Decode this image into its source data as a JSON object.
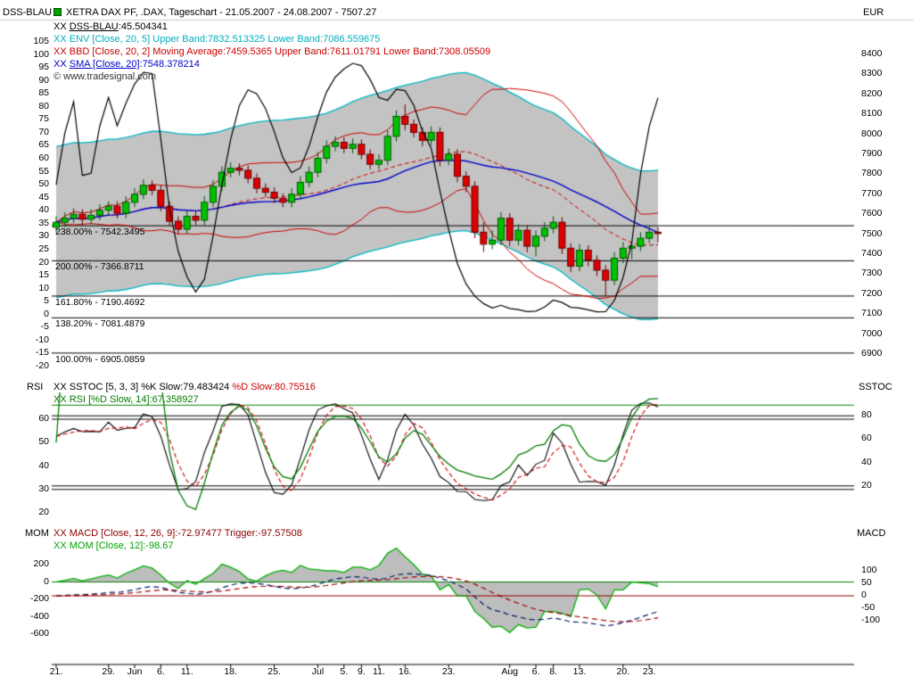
{
  "header": {
    "left_axis_title": "DSS-BLAU",
    "title": "XETRA DAX PF, .DAX, Tageschart - 21.05.2007 - 24.08.2007 - 7507.27",
    "right_axis_title": "EUR"
  },
  "panels": {
    "main": {
      "left_title": "DSS-BLAU",
      "right_title": "EUR"
    },
    "rsi": {
      "left_title": "RSI",
      "right_title": "SSTOC"
    },
    "mom": {
      "left_title": "MOM",
      "right_title": "MACD"
    }
  },
  "legends": {
    "main": [
      [
        {
          "t": "XX ",
          "c": "#000000"
        },
        {
          "t": "DSS-BLAU",
          "c": "#000000",
          "u": true
        },
        {
          "t": ":45.504341",
          "c": "#000000"
        }
      ],
      [
        {
          "t": "XX ",
          "c": "#00aebf"
        },
        {
          "t": "ENV [Close, 20, 5] Upper Band:7832.513325 Lower Band:7086.559675",
          "c": "#00aebf"
        }
      ],
      [
        {
          "t": "XX ",
          "c": "#cc0000"
        },
        {
          "t": "BBD [Close, 20, 2] Moving Average:7459.5365 Upper Band:7611.01791 Lower Band:7308.05509",
          "c": "#cc0000"
        }
      ],
      [
        {
          "t": "XX ",
          "c": "#0000cc"
        },
        {
          "t": "SMA [Close, 20]",
          "c": "#0000cc",
          "u": true
        },
        {
          "t": ":7548.378214",
          "c": "#0000cc"
        }
      ],
      [
        {
          "t": "© www.tradesignal.com",
          "c": "#333333"
        }
      ]
    ],
    "rsi": [
      [
        {
          "t": "XX ",
          "c": "#000000"
        },
        {
          "t": "SSTOC [5, 3, 3] %K Slow:79.483424 ",
          "c": "#000000"
        },
        {
          "t": "%D Slow:80.75516",
          "c": "#cc0000"
        }
      ],
      [
        {
          "t": "XX ",
          "c": "#007b00"
        },
        {
          "t": "RSI [%D Slow, 14]:67.358927",
          "c": "#007b00"
        }
      ]
    ],
    "mom": [
      [
        {
          "t": "XX ",
          "c": "#8b0000"
        },
        {
          "t": "MACD [Close, 12, 26, 9]:-72.97477 Trigger:-97.57508",
          "c": "#8b0000"
        }
      ],
      [
        {
          "t": "XX ",
          "c": "#00a000"
        },
        {
          "t": "MOM [Close, 12]:-98.67",
          "c": "#00a000"
        }
      ]
    ]
  },
  "fib_levels": [
    {
      "label": "238.00% - 7542.3495",
      "value": 7542.3495
    },
    {
      "label": "200.00% - 7366.8711",
      "value": 7366.8711
    },
    {
      "label": "161.80% - 7190.4692",
      "value": 7190.4692
    },
    {
      "label": "138.20% - 7081.4879",
      "value": 7081.4879
    },
    {
      "label": "100.00% - 6905.0859",
      "value": 6905.0859
    }
  ],
  "axes": {
    "main_left": [
      105,
      100,
      95,
      90,
      85,
      80,
      75,
      70,
      65,
      60,
      55,
      50,
      45,
      40,
      35,
      30,
      25,
      20,
      15,
      10,
      5,
      0,
      -5,
      -10,
      -15,
      -20
    ],
    "main_right": [
      8400,
      8300,
      8200,
      8100,
      8000,
      7900,
      7800,
      7700,
      7600,
      7500,
      7400,
      7300,
      7200,
      7100,
      7000,
      6900
    ],
    "rsi_left": [
      60,
      50,
      40,
      30,
      20
    ],
    "rsi_right": [
      80,
      60,
      40,
      20
    ],
    "mom_left": [
      200,
      0,
      -200,
      -400,
      -600
    ],
    "mom_right": [
      100,
      50,
      0,
      -50,
      -100
    ],
    "x_ticks": [
      {
        "label": "21.",
        "i": 0
      },
      {
        "label": "29.",
        "i": 6
      },
      {
        "label": "Jun",
        "i": 9
      },
      {
        "label": "6.",
        "i": 12
      },
      {
        "label": "11.",
        "i": 15
      },
      {
        "label": "18.",
        "i": 20
      },
      {
        "label": "25.",
        "i": 25
      },
      {
        "label": "Jul",
        "i": 30
      },
      {
        "label": "5.",
        "i": 33
      },
      {
        "label": "9.",
        "i": 35
      },
      {
        "label": "11.",
        "i": 37
      },
      {
        "label": "16.",
        "i": 40
      },
      {
        "label": "23.",
        "i": 45
      },
      {
        "label": "Aug",
        "i": 52
      },
      {
        "label": "6.",
        "i": 55
      },
      {
        "label": "8.",
        "i": 57
      },
      {
        "label": "13.",
        "i": 60
      },
      {
        "label": "20.",
        "i": 65
      },
      {
        "label": "23.",
        "i": 68
      }
    ]
  },
  "colors": {
    "candle_up": "#00c000",
    "candle_down": "#dd0000",
    "env": "#00b7c3",
    "band_fill": "#c3c3c3",
    "bb": "#cc0000",
    "sma": "#0000cc",
    "dss": "#000000",
    "rsi": "#007b00",
    "sstoc_k": "#000000",
    "sstoc_d": "#cc0000",
    "mom": "#00b000",
    "mom_fill": "#bdbdbd",
    "macd": "#001a66",
    "trigger": "#a00000",
    "ref_green": "#008000",
    "ref_red": "#990000",
    "fib": "#000000"
  },
  "chart_data": [
    {
      "type": "candlestick",
      "panel": "price",
      "instrument": "XETRA DAX PF, .DAX",
      "timeframe": "Tageschart",
      "range": "21.05.2007 - 24.08.2007",
      "last": 7507.27,
      "y_right_label": "EUR",
      "y_right_range": [
        6900,
        8400
      ],
      "y_left_label": "DSS-BLAU",
      "y_left_range": [
        -20,
        105
      ],
      "overlays": [
        {
          "name": "DSS-BLAU",
          "last": 45.504341
        },
        {
          "name": "ENV",
          "params": [
            20,
            5
          ],
          "upper_band": 7832.513325,
          "lower_band": 7086.559675
        },
        {
          "name": "BBD",
          "params": [
            20,
            2
          ],
          "moving_average": 7459.5365,
          "upper_band": 7611.01791,
          "lower_band": 7308.05509
        },
        {
          "name": "SMA",
          "params": [
            20
          ],
          "last": 7548.378214
        }
      ],
      "fib_values": [
        7542.3495,
        7366.8711,
        7190.4692,
        7081.4879,
        6905.0859
      ],
      "ohlc": [
        [
          7535,
          7590,
          7510,
          7560
        ],
        [
          7560,
          7610,
          7535,
          7580
        ],
        [
          7580,
          7630,
          7555,
          7600
        ],
        [
          7600,
          7625,
          7545,
          7575
        ],
        [
          7575,
          7625,
          7550,
          7595
        ],
        [
          7595,
          7650,
          7570,
          7620
        ],
        [
          7620,
          7665,
          7595,
          7640
        ],
        [
          7640,
          7665,
          7580,
          7605
        ],
        [
          7605,
          7690,
          7580,
          7660
        ],
        [
          7660,
          7730,
          7635,
          7700
        ],
        [
          7700,
          7775,
          7675,
          7745
        ],
        [
          7745,
          7770,
          7695,
          7720
        ],
        [
          7720,
          7745,
          7615,
          7640
        ],
        [
          7640,
          7665,
          7540,
          7565
        ],
        [
          7565,
          7590,
          7500,
          7525
        ],
        [
          7525,
          7620,
          7500,
          7590
        ],
        [
          7590,
          7615,
          7545,
          7570
        ],
        [
          7570,
          7690,
          7545,
          7660
        ],
        [
          7660,
          7770,
          7635,
          7740
        ],
        [
          7740,
          7840,
          7715,
          7810
        ],
        [
          7810,
          7860,
          7785,
          7830
        ],
        [
          7830,
          7855,
          7795,
          7820
        ],
        [
          7820,
          7845,
          7755,
          7780
        ],
        [
          7780,
          7805,
          7705,
          7730
        ],
        [
          7730,
          7755,
          7685,
          7710
        ],
        [
          7710,
          7735,
          7655,
          7680
        ],
        [
          7680,
          7705,
          7635,
          7660
        ],
        [
          7660,
          7730,
          7635,
          7700
        ],
        [
          7700,
          7790,
          7675,
          7760
        ],
        [
          7760,
          7840,
          7735,
          7810
        ],
        [
          7810,
          7910,
          7785,
          7880
        ],
        [
          7880,
          7970,
          7855,
          7940
        ],
        [
          7940,
          7990,
          7915,
          7960
        ],
        [
          7960,
          7985,
          7905,
          7930
        ],
        [
          7930,
          7980,
          7905,
          7950
        ],
        [
          7950,
          7975,
          7875,
          7900
        ],
        [
          7900,
          7925,
          7825,
          7850
        ],
        [
          7850,
          7900,
          7825,
          7870
        ],
        [
          7870,
          8020,
          7845,
          7990
        ],
        [
          7990,
          8120,
          7965,
          8090
        ],
        [
          8090,
          8150,
          8020,
          8050
        ],
        [
          8050,
          8075,
          7985,
          8010
        ],
        [
          8010,
          8035,
          7940,
          7970
        ],
        [
          7970,
          8040,
          7945,
          8010
        ],
        [
          8010,
          8035,
          7840,
          7870
        ],
        [
          7870,
          7930,
          7845,
          7900
        ],
        [
          7900,
          7925,
          7760,
          7790
        ],
        [
          7790,
          7815,
          7710,
          7740
        ],
        [
          7740,
          7765,
          7480,
          7510
        ],
        [
          7510,
          7560,
          7410,
          7450
        ],
        [
          7450,
          7520,
          7425,
          7470
        ],
        [
          7470,
          7610,
          7445,
          7580
        ],
        [
          7580,
          7605,
          7440,
          7470
        ],
        [
          7470,
          7550,
          7445,
          7520
        ],
        [
          7520,
          7545,
          7410,
          7440
        ],
        [
          7440,
          7520,
          7390,
          7490
        ],
        [
          7490,
          7560,
          7465,
          7530
        ],
        [
          7530,
          7590,
          7505,
          7560
        ],
        [
          7560,
          7585,
          7400,
          7430
        ],
        [
          7430,
          7455,
          7310,
          7340
        ],
        [
          7340,
          7450,
          7315,
          7420
        ],
        [
          7420,
          7445,
          7340,
          7370
        ],
        [
          7370,
          7395,
          7290,
          7320
        ],
        [
          7320,
          7345,
          7190,
          7270
        ],
        [
          7270,
          7410,
          7245,
          7380
        ],
        [
          7380,
          7460,
          7355,
          7430
        ],
        [
          7430,
          7455,
          7375,
          7440
        ],
        [
          7440,
          7510,
          7415,
          7480
        ],
        [
          7480,
          7540,
          7455,
          7510
        ],
        [
          7510,
          7535,
          7460,
          7507
        ]
      ]
    },
    {
      "type": "line",
      "panel": "oscillator",
      "y_left_label": "RSI",
      "y_right_label": "SSTOC",
      "series": [
        {
          "name": "SSTOC %K Slow",
          "params": [
            5,
            3,
            3
          ],
          "last": 79.483424
        },
        {
          "name": "SSTOC %D Slow",
          "last": 80.75516
        },
        {
          "name": "RSI",
          "params": [
            "%D Slow",
            14
          ],
          "last": 67.358927
        }
      ],
      "ref_lines_right": [
        80,
        20
      ],
      "ref_lines_left": [
        60,
        30
      ],
      "ref_line_green": 66
    },
    {
      "type": "line",
      "panel": "momentum",
      "y_left_label": "MOM",
      "y_right_label": "MACD",
      "series": [
        {
          "name": "MACD",
          "params": [
            12,
            26,
            9
          ],
          "last": -72.97477
        },
        {
          "name": "MACD Trigger",
          "last": -97.57508
        },
        {
          "name": "MOM",
          "params": [
            12
          ],
          "last": -98.67
        }
      ],
      "ref_line_mom": 0,
      "ref_line_macd": 0
    }
  ]
}
